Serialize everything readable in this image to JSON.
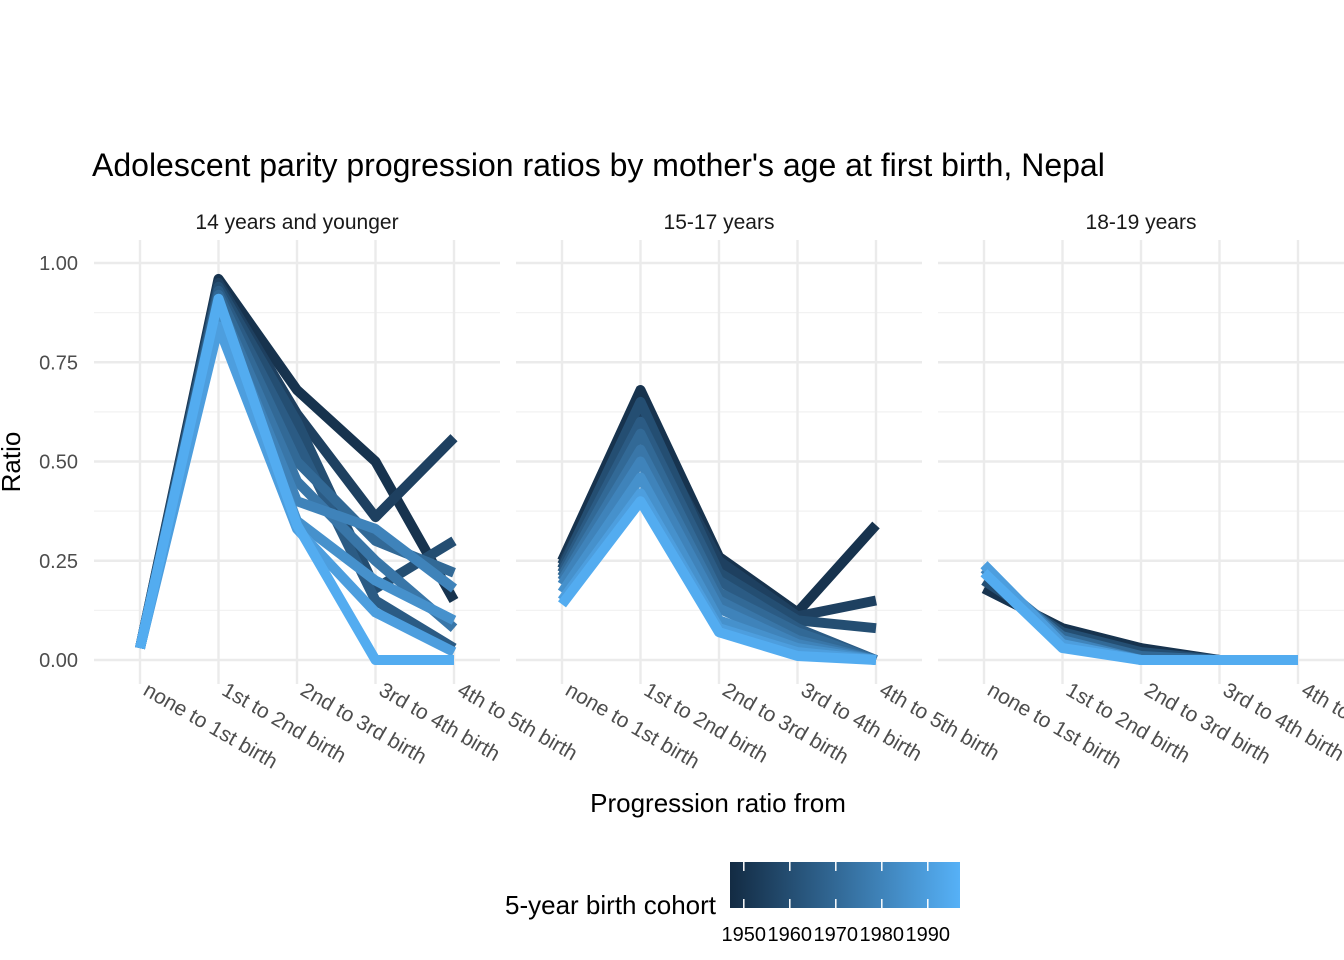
{
  "chart_data": {
    "type": "line",
    "title": "Adolescent parity progression ratios by mother's age at first birth,  Nepal",
    "xlabel": "Progression ratio from",
    "ylabel": "Ratio",
    "ylim": [
      0,
      1
    ],
    "yticks": [
      "0.00",
      "0.25",
      "0.50",
      "0.75",
      "1.00"
    ],
    "ytick_values": [
      0,
      0.25,
      0.5,
      0.75,
      1.0
    ],
    "categories": [
      "none to 1st birth",
      "1st to 2nd birth",
      "2nd to 3rd birth",
      "3rd to 4th birth",
      "4th to 5th birth"
    ],
    "grid": true,
    "legend": {
      "position": "bottom",
      "title": "5-year birth cohort",
      "type": "colorbar",
      "range": [
        1947,
        1997
      ],
      "ticks": [
        "1950",
        "1960",
        "1970",
        "1980",
        "1990"
      ],
      "tick_values": [
        1950,
        1960,
        1970,
        1980,
        1990
      ],
      "color_low": "#132b43",
      "color_high": "#56b1f7"
    },
    "panels": [
      {
        "label": "14 years and younger",
        "series": [
          {
            "cohort": 1950,
            "values": [
              0.03,
              0.96,
              0.68,
              0.5,
              0.15
            ]
          },
          {
            "cohort": 1955,
            "values": [
              0.03,
              0.95,
              0.62,
              0.36,
              0.56
            ]
          },
          {
            "cohort": 1960,
            "values": [
              0.03,
              0.94,
              0.6,
              0.18,
              0.3
            ]
          },
          {
            "cohort": 1965,
            "values": [
              0.03,
              0.93,
              0.55,
              0.15,
              0.03
            ]
          },
          {
            "cohort": 1970,
            "values": [
              0.03,
              0.92,
              0.5,
              0.3,
              0.22
            ]
          },
          {
            "cohort": 1975,
            "values": [
              0.03,
              0.9,
              0.45,
              0.25,
              0.08
            ]
          },
          {
            "cohort": 1980,
            "values": [
              0.03,
              0.88,
              0.4,
              0.33,
              0.18
            ]
          },
          {
            "cohort": 1985,
            "values": [
              0.03,
              0.86,
              0.35,
              0.2,
              0.1
            ]
          },
          {
            "cohort": 1990,
            "values": [
              0.03,
              0.84,
              0.33,
              0.12,
              0.02
            ]
          },
          {
            "cohort": 1995,
            "values": [
              0.03,
              0.91,
              0.34,
              0.0,
              0.0
            ]
          }
        ]
      },
      {
        "label": "15-17 years",
        "series": [
          {
            "cohort": 1950,
            "values": [
              0.25,
              0.68,
              0.26,
              0.12,
              0.34
            ]
          },
          {
            "cohort": 1955,
            "values": [
              0.24,
              0.62,
              0.25,
              0.11,
              0.15
            ]
          },
          {
            "cohort": 1960,
            "values": [
              0.23,
              0.65,
              0.22,
              0.1,
              0.08
            ]
          },
          {
            "cohort": 1965,
            "values": [
              0.22,
              0.6,
              0.2,
              0.08,
              0.0
            ]
          },
          {
            "cohort": 1970,
            "values": [
              0.21,
              0.57,
              0.17,
              0.07,
              0.0
            ]
          },
          {
            "cohort": 1975,
            "values": [
              0.2,
              0.53,
              0.15,
              0.05,
              0.0
            ]
          },
          {
            "cohort": 1980,
            "values": [
              0.19,
              0.5,
              0.13,
              0.04,
              0.0
            ]
          },
          {
            "cohort": 1985,
            "values": [
              0.17,
              0.46,
              0.1,
              0.03,
              0.0
            ]
          },
          {
            "cohort": 1990,
            "values": [
              0.15,
              0.42,
              0.08,
              0.02,
              0.0
            ]
          },
          {
            "cohort": 1995,
            "values": [
              0.14,
              0.4,
              0.07,
              0.01,
              0.0
            ]
          }
        ]
      },
      {
        "label": "18-19 years",
        "series": [
          {
            "cohort": 1950,
            "values": [
              0.18,
              0.08,
              0.03,
              0.0,
              0.0
            ]
          },
          {
            "cohort": 1960,
            "values": [
              0.2,
              0.07,
              0.02,
              0.0,
              0.0
            ]
          },
          {
            "cohort": 1970,
            "values": [
              0.22,
              0.06,
              0.01,
              0.0,
              0.0
            ]
          },
          {
            "cohort": 1980,
            "values": [
              0.23,
              0.05,
              0.0,
              0.0,
              0.0
            ]
          },
          {
            "cohort": 1990,
            "values": [
              0.24,
              0.04,
              0.0,
              0.0,
              0.0
            ]
          },
          {
            "cohort": 1995,
            "values": [
              0.22,
              0.03,
              0.0,
              0.0,
              0.0
            ]
          }
        ]
      }
    ]
  }
}
